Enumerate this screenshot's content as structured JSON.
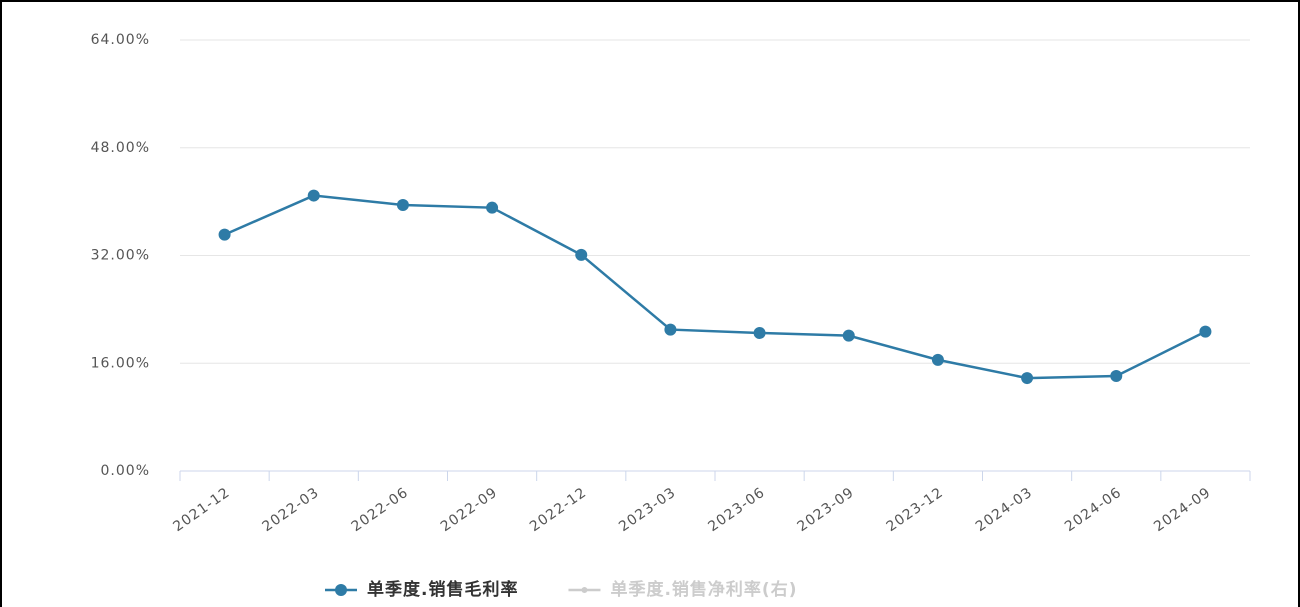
{
  "chart_data": {
    "type": "line",
    "categories": [
      "2021-12",
      "2022-03",
      "2022-06",
      "2022-09",
      "2022-12",
      "2023-03",
      "2023-06",
      "2023-09",
      "2023-12",
      "2024-03",
      "2024-06",
      "2024-09"
    ],
    "series": [
      {
        "name": "单季度.销售毛利率",
        "color": "#2e7ba6",
        "values": [
          35.1,
          40.9,
          39.5,
          39.1,
          32.1,
          21.0,
          20.5,
          20.1,
          16.5,
          13.8,
          14.1,
          20.7
        ]
      },
      {
        "name": "单季度.销售净利率(右)",
        "color": "#cccccc",
        "hidden": true,
        "values": [
          null,
          null,
          null,
          null,
          null,
          null,
          null,
          null,
          null,
          null,
          null,
          null
        ]
      }
    ],
    "ylim": [
      0,
      64
    ],
    "yticks": [
      {
        "value": 0,
        "label": "0.00%"
      },
      {
        "value": 16,
        "label": "16.00%"
      },
      {
        "value": 32,
        "label": "32.00%"
      },
      {
        "value": 48,
        "label": "48.00%"
      },
      {
        "value": 64,
        "label": "64.00%"
      }
    ],
    "grid": true
  }
}
